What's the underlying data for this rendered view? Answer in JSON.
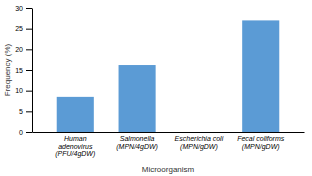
{
  "chart_data": {
    "type": "bar",
    "categories": [
      "Human\nadenovirus\n(PFU/4gDW)",
      "Salmonella\n(MPN/4gDW)",
      "Escherichia coli\n(MPN/gDW)",
      "Fecal coliforms\n(MPN/gDW)"
    ],
    "values": [
      8.5,
      16.2,
      0,
      27.0
    ],
    "color": "#5b9bd5",
    "ylabel": "Frequency (%)",
    "xlabel": "Microorganism",
    "ylim": [
      0,
      30
    ],
    "yticks": [
      0,
      5,
      10,
      15,
      20,
      25,
      30
    ]
  }
}
